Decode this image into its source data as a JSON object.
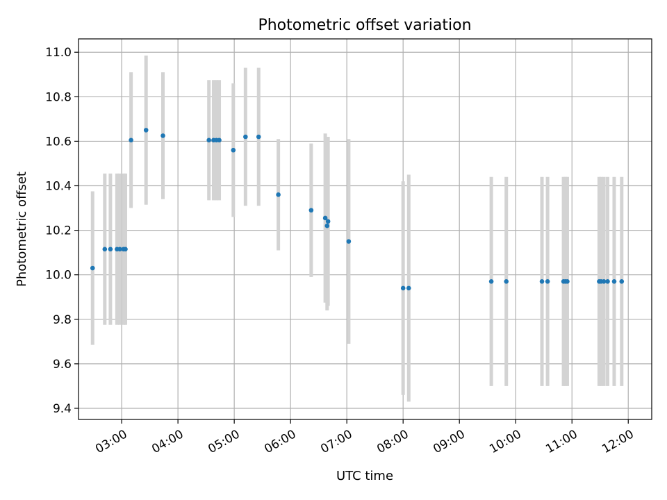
{
  "chart_data": {
    "type": "scatter",
    "title": "Photometric offset variation",
    "xlabel": "UTC time",
    "ylabel": "Photometric offset",
    "xlim": [
      "02:14",
      "12:25"
    ],
    "ylim": [
      9.35,
      11.06
    ],
    "x_ticks": [
      "03:00",
      "04:00",
      "05:00",
      "06:00",
      "07:00",
      "08:00",
      "09:00",
      "10:00",
      "11:00",
      "12:00"
    ],
    "y_ticks": [
      "9.4",
      "9.6",
      "9.8",
      "10.0",
      "10.2",
      "10.4",
      "10.6",
      "10.8",
      "11.0"
    ],
    "grid": true,
    "marker_color": "#1f77b4",
    "errorbar_color": "#d3d3d3",
    "series": [
      {
        "points": [
          {
            "time": "02:29",
            "y": 10.03,
            "err": 0.345
          },
          {
            "time": "02:42",
            "y": 10.115,
            "err": 0.34
          },
          {
            "time": "02:48",
            "y": 10.115,
            "err": 0.34
          },
          {
            "time": "02:55",
            "y": 10.115,
            "err": 0.34
          },
          {
            "time": "02:58",
            "y": 10.115,
            "err": 0.34
          },
          {
            "time": "03:02",
            "y": 10.115,
            "err": 0.34
          },
          {
            "time": "03:04",
            "y": 10.115,
            "err": 0.34
          },
          {
            "time": "03:10",
            "y": 10.605,
            "err": 0.305
          },
          {
            "time": "03:26",
            "y": 10.65,
            "err": 0.335
          },
          {
            "time": "03:44",
            "y": 10.625,
            "err": 0.285
          },
          {
            "time": "04:33",
            "y": 10.605,
            "err": 0.27
          },
          {
            "time": "04:38",
            "y": 10.605,
            "err": 0.27
          },
          {
            "time": "04:41",
            "y": 10.605,
            "err": 0.27
          },
          {
            "time": "04:44",
            "y": 10.605,
            "err": 0.27
          },
          {
            "time": "04:59",
            "y": 10.56,
            "err": 0.3
          },
          {
            "time": "05:12",
            "y": 10.62,
            "err": 0.31
          },
          {
            "time": "05:26",
            "y": 10.62,
            "err": 0.31
          },
          {
            "time": "05:47",
            "y": 10.36,
            "err": 0.25
          },
          {
            "time": "06:22",
            "y": 10.29,
            "err": 0.3
          },
          {
            "time": "06:37",
            "y": 10.255,
            "err": 0.38
          },
          {
            "time": "06:39",
            "y": 10.22,
            "err": 0.38
          },
          {
            "time": "06:40",
            "y": 10.24,
            "err": 0.38
          },
          {
            "time": "07:02",
            "y": 10.15,
            "err": 0.46
          },
          {
            "time": "08:00",
            "y": 9.94,
            "err": 0.48
          },
          {
            "time": "08:06",
            "y": 9.94,
            "err": 0.51
          },
          {
            "time": "09:34",
            "y": 9.97,
            "err": 0.47
          },
          {
            "time": "09:50",
            "y": 9.97,
            "err": 0.47
          },
          {
            "time": "10:28",
            "y": 9.97,
            "err": 0.47
          },
          {
            "time": "10:34",
            "y": 9.97,
            "err": 0.47
          },
          {
            "time": "10:51",
            "y": 9.97,
            "err": 0.47
          },
          {
            "time": "10:53",
            "y": 9.97,
            "err": 0.47
          },
          {
            "time": "10:55",
            "y": 9.97,
            "err": 0.47
          },
          {
            "time": "11:29",
            "y": 9.97,
            "err": 0.47
          },
          {
            "time": "11:31",
            "y": 9.97,
            "err": 0.47
          },
          {
            "time": "11:34",
            "y": 9.97,
            "err": 0.47
          },
          {
            "time": "11:38",
            "y": 9.97,
            "err": 0.47
          },
          {
            "time": "11:45",
            "y": 9.97,
            "err": 0.47
          },
          {
            "time": "11:53",
            "y": 9.97,
            "err": 0.47
          }
        ]
      }
    ]
  }
}
